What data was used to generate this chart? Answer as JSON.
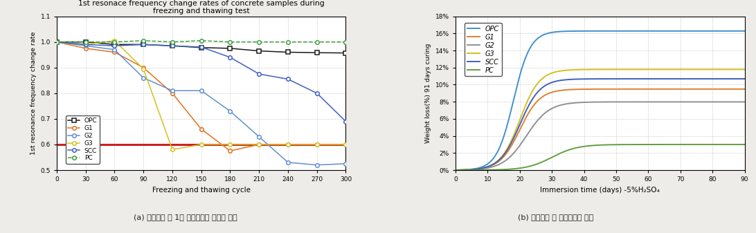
{
  "chart1": {
    "title": "1st resonace frequency change rates of concrete samples during\nfreezing and thawing test",
    "xlabel": "Freezing and thawing cycle",
    "ylabel": "1st resonance frequency change rate",
    "xlim": [
      0,
      300
    ],
    "ylim": [
      0.5,
      1.1
    ],
    "xticks": [
      0,
      30,
      60,
      90,
      120,
      150,
      180,
      210,
      240,
      270,
      300
    ],
    "yticks": [
      0.5,
      0.6,
      0.7,
      0.8,
      0.9,
      1.0,
      1.1
    ],
    "reference_line": 0.6,
    "series": {
      "OPC": {
        "x": [
          0,
          30,
          60,
          90,
          120,
          150,
          180,
          210,
          240,
          270,
          300
        ],
        "y": [
          1.0,
          1.0,
          0.99,
          0.99,
          0.985,
          0.978,
          0.975,
          0.965,
          0.96,
          0.958,
          0.957
        ],
        "color": "#1a1a1a",
        "marker": "s",
        "linestyle": "-"
      },
      "G1": {
        "x": [
          0,
          30,
          60,
          90,
          120,
          150,
          180,
          210,
          240,
          270,
          300
        ],
        "y": [
          1.0,
          0.975,
          0.96,
          0.9,
          0.8,
          0.66,
          0.575,
          0.6,
          0.6,
          0.6,
          0.6
        ],
        "color": "#e07020",
        "marker": "o",
        "linestyle": "-"
      },
      "G2": {
        "x": [
          0,
          30,
          60,
          90,
          120,
          150,
          180,
          210,
          240,
          270,
          300
        ],
        "y": [
          1.0,
          0.985,
          0.97,
          0.86,
          0.81,
          0.81,
          0.73,
          0.63,
          0.53,
          0.52,
          0.525
        ],
        "color": "#6090d0",
        "marker": "o",
        "linestyle": "-"
      },
      "G3": {
        "x": [
          0,
          30,
          60,
          90,
          120,
          150,
          180,
          210,
          240,
          270,
          300
        ],
        "y": [
          1.0,
          0.99,
          1.005,
          0.895,
          0.58,
          0.6,
          0.6,
          0.6,
          0.6,
          0.6,
          0.6
        ],
        "color": "#d4c020",
        "marker": "o",
        "linestyle": "-"
      },
      "SCC": {
        "x": [
          0,
          30,
          60,
          90,
          120,
          150,
          180,
          210,
          240,
          270,
          300
        ],
        "y": [
          1.0,
          0.99,
          0.985,
          0.99,
          0.985,
          0.98,
          0.94,
          0.875,
          0.855,
          0.8,
          0.69
        ],
        "color": "#4060c0",
        "marker": "o",
        "linestyle": "-"
      },
      "PC": {
        "x": [
          0,
          30,
          60,
          90,
          120,
          150,
          180,
          210,
          240,
          270,
          300
        ],
        "y": [
          1.0,
          1.0,
          1.0,
          1.005,
          1.0,
          1.005,
          1.0,
          1.0,
          1.0,
          1.0,
          1.0
        ],
        "color": "#40a040",
        "marker": "o",
        "linestyle": "--"
      }
    }
  },
  "chart2": {
    "xlabel": "Immersion time (days) -5%H₂SO₄",
    "ylabel": "Weight loss(%) 91 days curing",
    "xlim": [
      0,
      90
    ],
    "ylim": [
      0,
      18
    ],
    "xticks": [
      0,
      10,
      20,
      30,
      40,
      50,
      60,
      70,
      80,
      90
    ],
    "ytick_labels": [
      "0%",
      "2%",
      "4%",
      "6%",
      "8%",
      "10%",
      "12%",
      "14%",
      "16%",
      "18%"
    ],
    "yticks": [
      0,
      2,
      4,
      6,
      8,
      10,
      12,
      14,
      16,
      18
    ],
    "series": [
      {
        "name": "OPC",
        "color": "#4090d0",
        "mid": 18,
        "k": 0.38,
        "end_y": 16.3
      },
      {
        "name": "G1",
        "color": "#e08030",
        "mid": 20,
        "k": 0.32,
        "end_y": 9.5
      },
      {
        "name": "G2",
        "color": "#909090",
        "mid": 22,
        "k": 0.28,
        "end_y": 8.0
      },
      {
        "name": "G3",
        "color": "#d4c020",
        "mid": 20,
        "k": 0.33,
        "end_y": 11.8
      },
      {
        "name": "SCC",
        "color": "#4060c0",
        "mid": 20,
        "k": 0.32,
        "end_y": 10.7
      },
      {
        "name": "PC",
        "color": "#60a040",
        "mid": 30,
        "k": 0.25,
        "end_y": 3.0
      }
    ]
  },
  "caption_left": "(a) 동결융해 후 1차 공명진동수 변화율 결과",
  "caption_right": "(b) 황산침지 후 중량감소율 결과",
  "bg_color": "#eeece8"
}
